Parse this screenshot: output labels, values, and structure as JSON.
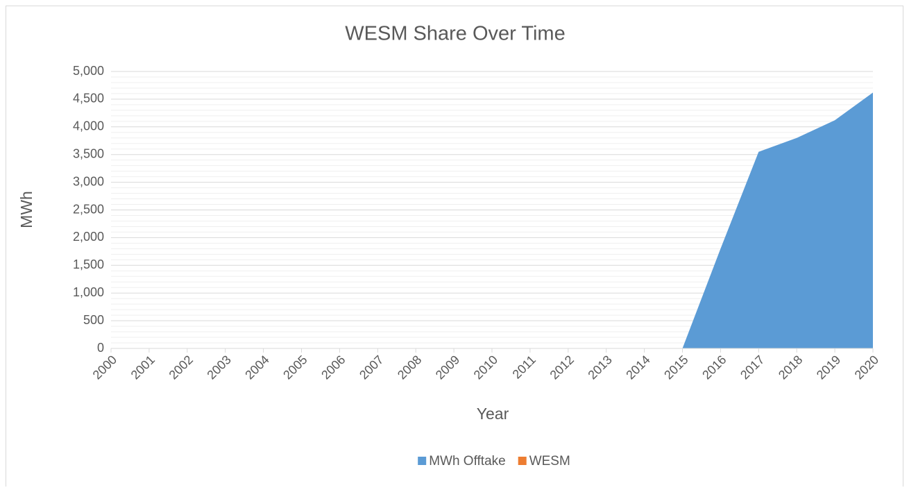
{
  "chart_data": {
    "type": "area",
    "stacked": true,
    "title": "WESM Share Over Time",
    "x_label": "Year",
    "y_label": "MWh",
    "categories": [
      "2000",
      "2001",
      "2002",
      "2003",
      "2004",
      "2005",
      "2006",
      "2007",
      "2008",
      "2009",
      "2010",
      "2011",
      "2012",
      "2013",
      "2014",
      "2015",
      "2016",
      "2017",
      "2018",
      "2019",
      "2020"
    ],
    "series": [
      {
        "name": "MWh Offtake",
        "color": "#5b9bd5",
        "values": [
          null,
          null,
          null,
          null,
          null,
          null,
          null,
          null,
          null,
          null,
          null,
          null,
          null,
          null,
          null,
          0,
          1800,
          3550,
          3800,
          4120,
          4620
        ]
      },
      {
        "name": "WESM",
        "color": "#ed7d31",
        "values": [
          null,
          null,
          null,
          null,
          null,
          null,
          null,
          null,
          null,
          null,
          null,
          null,
          null,
          null,
          null,
          0,
          0,
          0,
          0,
          0,
          0
        ]
      }
    ],
    "ylim": [
      0,
      5000
    ],
    "yticks": [
      0,
      {
        "value": 500,
        "label": "500"
      },
      {
        "value": 1000,
        "label": "1,000"
      },
      {
        "value": 1500,
        "label": "1,500"
      },
      {
        "value": 2000,
        "label": "2,000"
      },
      {
        "value": 2500,
        "label": "2,500"
      },
      {
        "value": 3000,
        "label": "3,000"
      },
      {
        "value": 3500,
        "label": "3,500"
      },
      {
        "value": 4000,
        "label": "4,000"
      },
      {
        "value": 4500,
        "label": "4,500"
      },
      {
        "value": 5000,
        "label": "5,000"
      }
    ],
    "grid": true,
    "minor_grid": true,
    "legend": "bottom"
  }
}
